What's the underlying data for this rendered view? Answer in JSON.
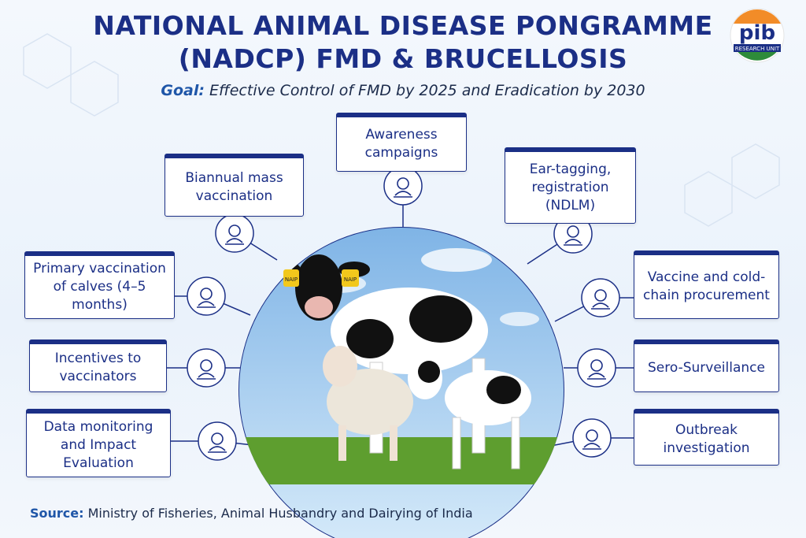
{
  "header": {
    "title_lines": [
      "NATIONAL ANIMAL DISEASE PONGRAMME",
      "(NADCP) FMD & BRUCELLOSIS"
    ],
    "goal_label": "Goal:",
    "goal_text": "Effective Control of FMD by 2025 and Eradication by 2030"
  },
  "logo": {
    "mark": "pib",
    "unit": "RESEARCH UNIT"
  },
  "nodes": [
    {
      "label": "Awareness campaigns"
    },
    {
      "label": "Biannual mass vaccination"
    },
    {
      "label": "Ear-tagging, registration (NDLM)"
    },
    {
      "label": "Primary vaccination of calves (4–5 months)"
    },
    {
      "label": "Vaccine and cold-chain procurement"
    },
    {
      "label": "Incentives to vaccinators"
    },
    {
      "label": "Sero-Surveillance"
    },
    {
      "label": "Data monitoring and Impact Evaluation"
    },
    {
      "label": "Outbreak investigation"
    }
  ],
  "image": {
    "ear_tags": [
      "NAIP",
      "NAIP"
    ]
  },
  "footer": {
    "source_label": "Source:",
    "source_text": "Ministry of Fisheries, Animal Husbandry and Dairying of India"
  }
}
